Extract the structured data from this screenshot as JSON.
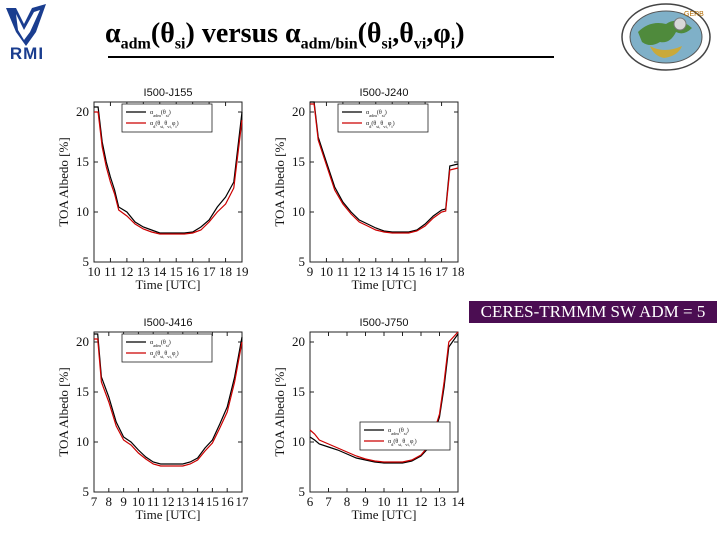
{
  "header": {
    "title_main_1": "α",
    "title_sub_1": "adm",
    "title_main_2": "(θ",
    "title_sub_2": "si",
    "title_main_3": ")  versus α",
    "title_sub_3": "adm/bin",
    "title_main_4": "(θ",
    "title_sub_4": "si",
    "title_main_5": ",θ",
    "title_sub_5": "vi",
    "title_main_6": ",φ",
    "title_sub_6": "i",
    "title_main_7": ")"
  },
  "logos": {
    "rmi_text": "RMI",
    "gerb_text": "GERB"
  },
  "annotation": {
    "text": "CERES-TRMMM SW ADM = 5"
  },
  "colors": {
    "adm": "#000000",
    "adm_bin": "#cc0000",
    "annotation_bg": "#4b0d52"
  },
  "chart_data": [
    {
      "type": "line",
      "title": "I500-J155",
      "xlabel": "Time [UTC]",
      "ylabel": "TOA Albedo [%]",
      "xlim": [
        10,
        19
      ],
      "ylim": [
        5,
        21
      ],
      "xticks": [
        "10",
        "11",
        "12",
        "13",
        "14",
        "15",
        "16",
        "17",
        "18",
        "19"
      ],
      "yticks": [
        "5",
        "10",
        "15",
        "20"
      ],
      "legend_position": "top-right",
      "series": [
        {
          "name": "α_adm(θ_si)",
          "color": "#000000",
          "x": [
            10,
            10.25,
            10.5,
            10.75,
            11,
            11.25,
            11.5,
            12,
            12.5,
            13,
            13.5,
            14,
            14.5,
            15,
            15.5,
            16,
            16.5,
            17,
            17.5,
            18,
            18.5,
            19
          ],
          "y": [
            20.5,
            20.5,
            17,
            15,
            13.5,
            12.2,
            10.5,
            10,
            9,
            8.5,
            8.2,
            7.9,
            7.9,
            7.9,
            7.9,
            8,
            8.5,
            9.2,
            10.5,
            11.5,
            13,
            20
          ]
        },
        {
          "name": "α_d(θ_si,θ_vi,φ_i)",
          "color": "#cc0000",
          "x": [
            10,
            10.25,
            10.5,
            10.75,
            11,
            11.25,
            11.5,
            12,
            12.5,
            13,
            13.5,
            14,
            14.5,
            15,
            15.5,
            16,
            16.5,
            17,
            17.5,
            18,
            18.5,
            19
          ],
          "y": [
            20.0,
            20.0,
            16.5,
            14.5,
            13,
            11.8,
            10.2,
            9.6,
            8.8,
            8.3,
            8.0,
            7.8,
            7.8,
            7.8,
            7.8,
            7.9,
            8.2,
            9.0,
            10.0,
            10.8,
            12.4,
            19.2
          ]
        }
      ]
    },
    {
      "type": "line",
      "title": "I500-J240",
      "xlabel": "Time [UTC]",
      "ylabel": "TOA Albedo [%]",
      "xlim": [
        9,
        18
      ],
      "ylim": [
        5,
        21
      ],
      "xticks": [
        "9",
        "10",
        "11",
        "12",
        "13",
        "14",
        "15",
        "16",
        "17",
        "18"
      ],
      "yticks": [
        "5",
        "10",
        "15",
        "20"
      ],
      "legend_position": "top-right",
      "series": [
        {
          "name": "α_adm(θ_si)",
          "color": "#000000",
          "x": [
            9,
            9.25,
            9.5,
            10,
            10.5,
            11,
            11.5,
            12,
            12.5,
            13,
            13.5,
            14,
            14.5,
            15,
            15.5,
            16,
            16.5,
            17,
            17.25,
            17.5,
            18
          ],
          "y": [
            21,
            21,
            17.5,
            15,
            12.5,
            11,
            10,
            9.2,
            8.8,
            8.4,
            8.1,
            8.0,
            8.0,
            8.0,
            8.2,
            8.8,
            9.6,
            10.2,
            10.3,
            14.6,
            14.8
          ]
        },
        {
          "name": "α_d(θ_si,θ_vi,φ_i)",
          "color": "#cc0000",
          "x": [
            9,
            9.25,
            9.5,
            10,
            10.5,
            11,
            11.5,
            12,
            12.5,
            13,
            13.5,
            14,
            14.5,
            15,
            15.5,
            16,
            16.5,
            17,
            17.25,
            17.5,
            18
          ],
          "y": [
            20.8,
            20.8,
            17.2,
            14.7,
            12.2,
            10.8,
            9.8,
            9.0,
            8.6,
            8.2,
            8.0,
            7.9,
            7.9,
            7.9,
            8.1,
            8.6,
            9.4,
            10.0,
            10.1,
            14.2,
            14.4
          ]
        }
      ]
    },
    {
      "type": "line",
      "title": "I500-J416",
      "xlabel": "Time [UTC]",
      "ylabel": "TOA Albedo [%]",
      "xlim": [
        7,
        17
      ],
      "ylim": [
        5,
        21
      ],
      "xticks": [
        "7",
        "8",
        "9",
        "10",
        "11",
        "12",
        "13",
        "14",
        "15",
        "16",
        "17"
      ],
      "yticks": [
        "5",
        "10",
        "15",
        "20"
      ],
      "legend_position": "top-right",
      "series": [
        {
          "name": "α_adm(θ_si)",
          "color": "#000000",
          "x": [
            7,
            7.25,
            7.5,
            8,
            8.5,
            9,
            9.5,
            10,
            10.5,
            11,
            11.5,
            12,
            12.5,
            13,
            13.5,
            14,
            14.5,
            15,
            15.5,
            16,
            16.5,
            17
          ],
          "y": [
            20.8,
            20.8,
            16.5,
            14.5,
            12,
            10.5,
            10,
            9.2,
            8.5,
            8.0,
            7.8,
            7.8,
            7.8,
            7.8,
            8.0,
            8.4,
            9.4,
            10.2,
            11.8,
            13.5,
            16.5,
            20.5
          ]
        },
        {
          "name": "α_d(θ_si,θ_vi,φ_i)",
          "color": "#cc0000",
          "x": [
            7,
            7.25,
            7.5,
            8,
            8.5,
            9,
            9.5,
            10,
            10.5,
            11,
            11.5,
            12,
            12.5,
            13,
            13.5,
            14,
            14.5,
            15,
            15.5,
            16,
            16.5,
            17
          ],
          "y": [
            20.3,
            20.3,
            16.0,
            14.0,
            11.6,
            10.2,
            9.7,
            8.9,
            8.3,
            7.8,
            7.6,
            7.6,
            7.6,
            7.6,
            7.8,
            8.2,
            9.1,
            9.9,
            11.4,
            13.0,
            16.0,
            20.0
          ]
        }
      ]
    },
    {
      "type": "line",
      "title": "I500-J750",
      "xlabel": "Time [UTC]",
      "ylabel": "TOA Albedo [%]",
      "xlim": [
        6,
        14
      ],
      "ylim": [
        5,
        21
      ],
      "xticks": [
        "6",
        "7",
        "8",
        "9",
        "10",
        "11",
        "12",
        "13",
        "14"
      ],
      "yticks": [
        "5",
        "10",
        "15",
        "20"
      ],
      "legend_position": "center",
      "series": [
        {
          "name": "α_adm(θ_si)",
          "color": "#000000",
          "x": [
            6,
            6.25,
            6.5,
            7,
            7.5,
            8,
            8.5,
            9,
            9.5,
            10,
            10.5,
            11,
            11.5,
            12,
            12.5,
            13,
            13.25,
            13.5,
            14
          ],
          "y": [
            10.5,
            10.2,
            9.8,
            9.5,
            9.2,
            8.8,
            8.4,
            8.2,
            8.0,
            7.9,
            7.9,
            7.9,
            8.1,
            8.6,
            9.6,
            12.5,
            15.5,
            19.5,
            20.8
          ]
        },
        {
          "name": "α_d(θ_si,θ_vi,φ_i)",
          "color": "#cc0000",
          "x": [
            6,
            6.25,
            6.5,
            7,
            7.5,
            8,
            8.5,
            9,
            9.5,
            10,
            10.5,
            11,
            11.5,
            12,
            12.5,
            13,
            13.25,
            13.5,
            14
          ],
          "y": [
            11.2,
            10.8,
            10.2,
            9.8,
            9.4,
            9.0,
            8.6,
            8.3,
            8.1,
            8.0,
            8.0,
            8.0,
            8.2,
            8.7,
            9.8,
            12.8,
            16.0,
            20.0,
            21.0
          ]
        }
      ]
    }
  ]
}
